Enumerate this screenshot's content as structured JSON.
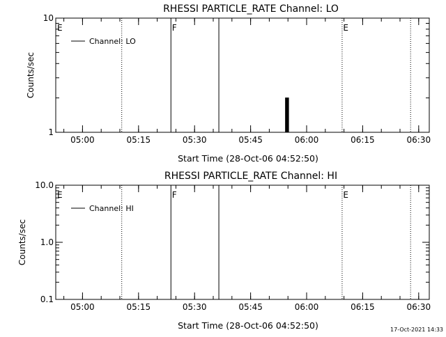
{
  "footer": {
    "timestamp": "17-Oct-2021 14:33"
  },
  "chart_data": [
    {
      "type": "line",
      "title": "RHESSI PARTICLE_RATE Channel: LO",
      "xlabel": "Start Time (28-Oct-06 04:52:50)",
      "ylabel": "Counts/sec",
      "yscale": "log",
      "ylim": [
        1,
        10
      ],
      "yticks": [
        {
          "v": 1,
          "label": "1"
        },
        {
          "v": 10,
          "label": "10"
        }
      ],
      "xlim": [
        "04:52:50",
        "06:32:50"
      ],
      "xticks": [
        "05:00",
        "05:15",
        "05:30",
        "05:45",
        "06:00",
        "06:15",
        "06:30"
      ],
      "legend": {
        "position": "top-left",
        "entries": [
          "Channel: LO"
        ]
      },
      "series": [
        {
          "name": "Channel: LO",
          "x": [
            "05:54:10",
            "05:54:20",
            "05:54:30",
            "05:54:40",
            "05:54:50",
            "05:55:00",
            "05:55:10",
            "05:55:20"
          ],
          "y": [
            1,
            2,
            1,
            2,
            1,
            2,
            1,
            1
          ]
        }
      ],
      "markers": [
        {
          "t": "04:52:55",
          "label": "E",
          "style": "none"
        },
        {
          "t": "05:10:30",
          "label": "",
          "style": "dotted"
        },
        {
          "t": "05:23:40",
          "label": "F",
          "style": "solid"
        },
        {
          "t": "05:36:30",
          "label": "",
          "style": "solid"
        },
        {
          "t": "06:09:30",
          "label": "E",
          "style": "dotted"
        },
        {
          "t": "06:27:50",
          "label": "",
          "style": "dotted"
        }
      ]
    },
    {
      "type": "line",
      "title": "RHESSI PARTICLE_RATE Channel: HI",
      "xlabel": "Start Time (28-Oct-06 04:52:50)",
      "ylabel": "Counts/sec",
      "yscale": "log",
      "ylim": [
        0.1,
        10
      ],
      "yticks": [
        {
          "v": 0.1,
          "label": "0.1"
        },
        {
          "v": 1,
          "label": "1.0"
        },
        {
          "v": 10,
          "label": "10.0"
        }
      ],
      "xlim": [
        "04:52:50",
        "06:32:50"
      ],
      "xticks": [
        "05:00",
        "05:15",
        "05:30",
        "05:45",
        "06:00",
        "06:15",
        "06:30"
      ],
      "legend": {
        "position": "top-left",
        "entries": [
          "Channel: HI"
        ]
      },
      "series": [
        {
          "name": "Channel: HI",
          "x": [],
          "y": []
        }
      ],
      "markers": [
        {
          "t": "04:52:55",
          "label": "E",
          "style": "none"
        },
        {
          "t": "05:10:30",
          "label": "",
          "style": "dotted"
        },
        {
          "t": "05:23:40",
          "label": "F",
          "style": "solid"
        },
        {
          "t": "05:36:30",
          "label": "",
          "style": "solid"
        },
        {
          "t": "06:09:30",
          "label": "E",
          "style": "dotted"
        },
        {
          "t": "06:27:50",
          "label": "",
          "style": "dotted"
        }
      ]
    }
  ]
}
